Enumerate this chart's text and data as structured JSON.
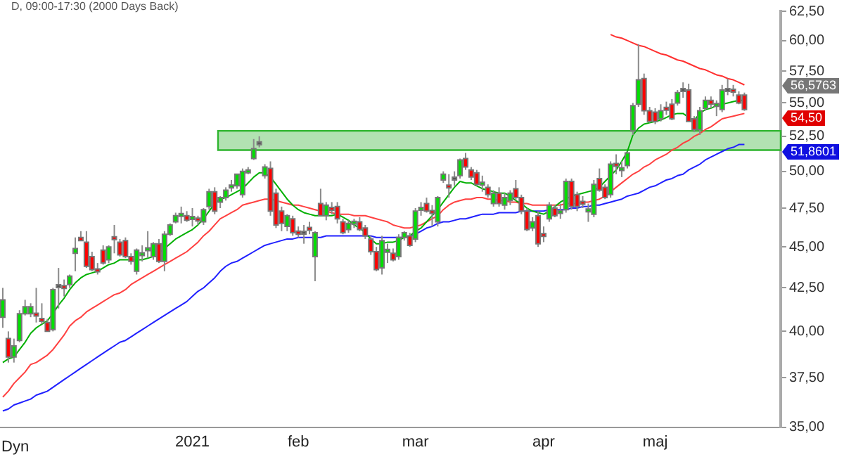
{
  "chart_data": {
    "type": "candlestick",
    "title": "D, 09:00-17:30 (2000 Days Back)",
    "categories": [
      null,
      null,
      null,
      null,
      null,
      null,
      null,
      null,
      null,
      null,
      null,
      null,
      null,
      null,
      null,
      null,
      null,
      null,
      null,
      null,
      null,
      null,
      null,
      null,
      null,
      null,
      null,
      null,
      null,
      null,
      null,
      null,
      null,
      null,
      "2021",
      null,
      null,
      null,
      null,
      null,
      null,
      null,
      null,
      null,
      null,
      null,
      null,
      null,
      null,
      null,
      null,
      null,
      null,
      "feb",
      null,
      null,
      null,
      null,
      null,
      null,
      null,
      null,
      null,
      null,
      null,
      null,
      null,
      null,
      null,
      null,
      null,
      null,
      null,
      null,
      "mar",
      null,
      null,
      null,
      null,
      null,
      null,
      null,
      null,
      null,
      null,
      null,
      null,
      null,
      null,
      null,
      null,
      null,
      null,
      null,
      null,
      null,
      null,
      "apr",
      null,
      null,
      null,
      null,
      null,
      null,
      null,
      null,
      null,
      null,
      null,
      null,
      null,
      null,
      null,
      null,
      null,
      null,
      null,
      "maj",
      null,
      null,
      null,
      null,
      null,
      null,
      null,
      null,
      null,
      null,
      null,
      null,
      null,
      null,
      null,
      null
    ],
    "ohlc": [
      [
        40.8,
        42.5,
        40.2,
        41.8
      ],
      [
        39.6,
        40.0,
        38.3,
        38.6
      ],
      [
        38.6,
        39.6,
        38.3,
        39.2
      ],
      [
        39.5,
        41.2,
        39.4,
        41.0
      ],
      [
        41.0,
        41.8,
        40.9,
        41.4
      ],
      [
        41.0,
        41.6,
        40.8,
        41.4
      ],
      [
        41.0,
        42.5,
        40.5,
        40.9
      ],
      [
        40.7,
        41.6,
        40.4,
        40.6
      ],
      [
        40.5,
        40.7,
        40.0,
        40.0
      ],
      [
        40.1,
        42.5,
        40.0,
        42.4
      ],
      [
        42.6,
        43.7,
        41.3,
        42.6
      ],
      [
        42.6,
        43.0,
        42.0,
        42.5
      ],
      [
        42.7,
        43.3,
        42.5,
        43.2
      ],
      [
        44.6,
        45.6,
        43.5,
        44.9
      ],
      [
        45.6,
        46.0,
        45.4,
        45.4
      ],
      [
        45.3,
        46.0,
        43.7,
        43.8
      ],
      [
        44.4,
        44.7,
        43.5,
        43.6
      ],
      [
        43.6,
        44.0,
        43.3,
        43.5
      ],
      [
        44.8,
        45.1,
        43.9,
        44.0
      ],
      [
        44.2,
        45.1,
        44.0,
        45.0
      ],
      [
        45.6,
        46.4,
        44.6,
        45.5
      ],
      [
        45.3,
        45.5,
        44.4,
        44.5
      ],
      [
        45.4,
        45.6,
        44.3,
        44.4
      ],
      [
        44.4,
        44.6,
        43.9,
        44.1
      ],
      [
        43.5,
        44.9,
        43.3,
        44.8
      ],
      [
        44.5,
        45.1,
        44.1,
        44.6
      ],
      [
        44.8,
        46.0,
        44.3,
        44.9
      ],
      [
        44.4,
        45.3,
        44.2,
        45.2
      ],
      [
        45.2,
        45.5,
        44.0,
        44.1
      ],
      [
        44.1,
        46.0,
        43.5,
        45.8
      ],
      [
        45.8,
        46.5,
        45.7,
        46.4
      ],
      [
        46.6,
        47.2,
        46.5,
        47.0
      ],
      [
        47.0,
        47.6,
        46.5,
        47.1
      ],
      [
        47.0,
        47.3,
        46.6,
        46.7
      ],
      [
        46.8,
        47.5,
        46.3,
        46.9
      ],
      [
        46.8,
        47.0,
        46.4,
        46.7
      ],
      [
        46.6,
        47.5,
        46.4,
        47.4
      ],
      [
        47.6,
        48.8,
        47.4,
        48.6
      ],
      [
        48.6,
        48.9,
        47.1,
        47.3
      ],
      [
        47.9,
        48.3,
        47.5,
        48.2
      ],
      [
        48.2,
        48.9,
        48.0,
        48.7
      ],
      [
        48.9,
        49.4,
        48.6,
        49.0
      ],
      [
        49.0,
        49.8,
        48.8,
        49.8
      ],
      [
        48.4,
        50.2,
        48.2,
        50.0
      ],
      [
        49.9,
        50.3,
        49.8,
        50.1
      ],
      [
        50.9,
        52.3,
        50.8,
        51.6
      ],
      [
        52.0,
        52.5,
        51.7,
        52.0
      ],
      [
        49.7,
        50.5,
        49.5,
        50.3
      ],
      [
        50.2,
        50.7,
        47.0,
        47.3
      ],
      [
        48.5,
        48.8,
        46.2,
        46.4
      ],
      [
        47.3,
        47.6,
        46.0,
        46.5
      ],
      [
        46.3,
        47.1,
        46.0,
        47.0
      ],
      [
        46.8,
        47.0,
        45.7,
        45.9
      ],
      [
        46.0,
        46.3,
        45.6,
        45.8
      ],
      [
        45.9,
        46.4,
        45.2,
        45.9
      ],
      [
        46.2,
        46.6,
        45.8,
        46.1
      ],
      [
        44.4,
        46.0,
        42.9,
        45.9
      ],
      [
        47.8,
        48.8,
        47.0,
        47.0
      ],
      [
        47.0,
        47.9,
        46.7,
        47.7
      ],
      [
        47.5,
        47.9,
        47.1,
        47.4
      ],
      [
        47.6,
        47.9,
        46.5,
        46.8
      ],
      [
        46.6,
        46.8,
        45.8,
        45.9
      ],
      [
        46.1,
        46.7,
        45.9,
        46.5
      ],
      [
        46.5,
        46.8,
        46.2,
        46.6
      ],
      [
        46.6,
        46.9,
        46.0,
        46.1
      ],
      [
        46.2,
        46.4,
        45.5,
        45.7
      ],
      [
        45.5,
        45.7,
        44.5,
        44.7
      ],
      [
        44.7,
        45.0,
        43.5,
        43.6
      ],
      [
        43.7,
        45.7,
        43.3,
        45.4
      ],
      [
        44.7,
        45.2,
        44.0,
        44.8
      ],
      [
        44.6,
        44.9,
        44.1,
        44.2
      ],
      [
        44.4,
        45.8,
        44.2,
        45.6
      ],
      [
        45.6,
        46.0,
        45.4,
        45.9
      ],
      [
        45.7,
        45.9,
        45.0,
        45.1
      ],
      [
        45.5,
        47.5,
        45.3,
        47.3
      ],
      [
        47.4,
        47.9,
        47.0,
        47.5
      ],
      [
        47.8,
        48.2,
        47.2,
        47.3
      ],
      [
        47.3,
        47.7,
        46.3,
        47.2
      ],
      [
        46.6,
        48.3,
        46.3,
        48.2
      ],
      [
        49.4,
        50.0,
        49.2,
        49.8
      ],
      [
        49.0,
        49.8,
        48.2,
        48.9
      ],
      [
        49.5,
        50.0,
        49.0,
        49.5
      ],
      [
        49.7,
        50.9,
        49.5,
        50.8
      ],
      [
        50.9,
        51.3,
        50.1,
        50.3
      ],
      [
        50.1,
        50.3,
        49.4,
        49.6
      ],
      [
        49.9,
        50.1,
        49.0,
        49.1
      ],
      [
        49.1,
        49.7,
        48.6,
        49.2
      ],
      [
        48.9,
        49.1,
        48.2,
        48.4
      ],
      [
        47.8,
        48.7,
        47.6,
        48.5
      ],
      [
        48.5,
        48.9,
        47.6,
        47.8
      ],
      [
        47.7,
        48.5,
        47.4,
        48.2
      ],
      [
        48.0,
        48.7,
        47.7,
        48.5
      ],
      [
        48.8,
        49.4,
        48.0,
        48.2
      ],
      [
        48.2,
        48.4,
        47.1,
        47.3
      ],
      [
        47.3,
        47.5,
        46.0,
        46.1
      ],
      [
        46.2,
        46.9,
        46.0,
        46.6
      ],
      [
        47.0,
        47.3,
        45.0,
        45.2
      ],
      [
        45.8,
        46.3,
        45.3,
        45.7
      ],
      [
        46.8,
        47.9,
        46.6,
        47.7
      ],
      [
        47.5,
        47.7,
        46.9,
        47.0
      ],
      [
        47.2,
        47.8,
        46.8,
        47.3
      ],
      [
        47.4,
        49.5,
        47.2,
        49.3
      ],
      [
        49.3,
        49.5,
        47.4,
        47.6
      ],
      [
        48.4,
        48.6,
        47.3,
        47.6
      ],
      [
        47.9,
        48.3,
        47.5,
        47.8
      ],
      [
        47.3,
        47.8,
        46.6,
        47.4
      ],
      [
        47.1,
        49.4,
        46.9,
        49.1
      ],
      [
        49.5,
        50.2,
        48.6,
        48.7
      ],
      [
        48.9,
        49.1,
        48.1,
        48.2
      ],
      [
        48.4,
        50.7,
        48.2,
        50.5
      ],
      [
        50.5,
        51.2,
        49.8,
        50.4
      ],
      [
        50.1,
        50.7,
        49.6,
        50.2
      ],
      [
        50.4,
        51.4,
        50.2,
        51.3
      ],
      [
        52.9,
        55.0,
        52.6,
        54.8
      ],
      [
        54.9,
        59.7,
        54.7,
        56.8
      ],
      [
        56.9,
        57.3,
        54.1,
        54.4
      ],
      [
        54.4,
        54.7,
        53.5,
        53.6
      ],
      [
        54.3,
        54.6,
        53.4,
        53.6
      ],
      [
        53.8,
        54.9,
        53.6,
        54.4
      ],
      [
        54.6,
        55.1,
        54.1,
        54.5
      ],
      [
        54.9,
        55.3,
        53.7,
        53.8
      ],
      [
        55.0,
        56.0,
        54.8,
        55.8
      ],
      [
        56.0,
        56.6,
        55.4,
        56.0
      ],
      [
        56.0,
        56.5,
        53.6,
        53.6
      ],
      [
        53.8,
        54.0,
        52.8,
        53.0
      ],
      [
        53.0,
        54.7,
        52.6,
        54.4
      ],
      [
        54.6,
        55.5,
        54.4,
        55.2
      ],
      [
        55.2,
        55.5,
        54.6,
        54.9
      ],
      [
        54.8,
        55.2,
        54.0,
        54.9
      ],
      [
        54.5,
        56.4,
        54.3,
        56.0
      ],
      [
        56.0,
        56.9,
        55.6,
        56.0
      ],
      [
        56.0,
        56.4,
        55.5,
        55.9
      ],
      [
        55.6,
        55.9,
        54.9,
        55.0
      ],
      [
        55.6,
        55.8,
        54.4,
        54.5
      ]
    ],
    "series": [
      {
        "type": "line",
        "color": "#00b000",
        "values": [
          38.3,
          38.5,
          38.6,
          39.0,
          39.4,
          39.9,
          40.2,
          40.4,
          40.6,
          41.0,
          41.5,
          41.9,
          42.4,
          42.8,
          43.1,
          43.3,
          43.4,
          43.5,
          43.7,
          43.9,
          44.0,
          44.2,
          44.2,
          44.2,
          44.2,
          44.2,
          44.3,
          44.4,
          44.6,
          44.9,
          45.2,
          45.5,
          45.7,
          45.9,
          46.1,
          46.4,
          46.8,
          47.3,
          47.8,
          48.1,
          48.2,
          48.4,
          48.6,
          48.8,
          49.2,
          49.6,
          49.9,
          49.9,
          49.6,
          49.1,
          48.6,
          48.1,
          47.7,
          47.4,
          47.2,
          47.1,
          47.0,
          47.0,
          47.0,
          47.0,
          47.1,
          46.9,
          46.7,
          46.4,
          46.2,
          45.9,
          45.5,
          45.2,
          45.2,
          45.3,
          45.3,
          45.4,
          45.6,
          45.7,
          46.0,
          46.2,
          46.6,
          47.0,
          47.4,
          47.9,
          48.4,
          48.9,
          49.3,
          49.2,
          49.2,
          49.0,
          48.8,
          48.7,
          48.6,
          48.5,
          48.5,
          48.3,
          48.0,
          47.8,
          47.5,
          47.3,
          47.2,
          47.1,
          47.3,
          47.6,
          47.9,
          48.1,
          48.3,
          48.4,
          48.5,
          48.6,
          48.7,
          48.9,
          49.3,
          49.7,
          50.1,
          50.7,
          51.4,
          52.6,
          53.1,
          53.4,
          53.5,
          53.6,
          53.7,
          53.9,
          54.1,
          54.2,
          54.2,
          53.9,
          53.7,
          54.2,
          54.5,
          54.6,
          54.8,
          54.9,
          55.0,
          55.1,
          55.2,
          55.2
        ]
      },
      {
        "type": "line",
        "color": "#ff4040",
        "values": [
          36.5,
          36.8,
          37.2,
          37.5,
          37.8,
          38.2,
          38.3,
          38.5,
          38.7,
          39.0,
          39.4,
          39.8,
          40.3,
          40.6,
          40.8,
          41.1,
          41.3,
          41.5,
          41.7,
          41.9,
          42.1,
          42.2,
          42.4,
          42.7,
          42.9,
          43.1,
          43.3,
          43.5,
          43.7,
          43.9,
          44.1,
          44.3,
          44.5,
          44.7,
          45.0,
          45.3,
          45.7,
          46.0,
          46.4,
          46.8,
          47.0,
          47.2,
          47.4,
          47.7,
          47.8,
          47.9,
          48.0,
          48.1,
          48.1,
          48.0,
          47.9,
          47.8,
          47.7,
          47.7,
          47.6,
          47.5,
          47.4,
          47.3,
          47.3,
          47.2,
          47.1,
          47.1,
          47.1,
          47.0,
          47.0,
          47.0,
          46.9,
          46.8,
          46.7,
          46.6,
          46.4,
          46.3,
          46.2,
          46.2,
          46.3,
          46.4,
          46.6,
          46.8,
          47.0,
          47.4,
          47.7,
          47.9,
          48.0,
          48.1,
          48.1,
          48.2,
          48.2,
          48.1,
          48.1,
          48.0,
          48.0,
          47.9,
          47.9,
          47.8,
          47.8,
          47.7,
          47.7,
          47.7,
          47.7,
          47.7,
          47.7,
          47.8,
          47.8,
          47.8,
          47.9,
          47.9,
          48.0,
          48.1,
          48.3,
          48.6,
          48.9,
          49.2,
          49.5,
          49.8,
          50.0,
          50.3,
          50.5,
          50.8,
          51.0,
          51.2,
          51.5,
          51.7,
          52.0,
          52.2,
          52.5,
          52.7,
          53.0,
          53.2,
          53.5,
          53.8,
          53.9,
          54.0,
          54.1,
          54.2
        ]
      },
      {
        "type": "line",
        "color": "#2020ff",
        "values": [
          35.8,
          35.9,
          36.1,
          36.2,
          36.3,
          36.4,
          36.6,
          36.7,
          36.8,
          37.0,
          37.2,
          37.4,
          37.6,
          37.8,
          38.0,
          38.2,
          38.4,
          38.6,
          38.8,
          39.0,
          39.2,
          39.4,
          39.5,
          39.7,
          39.9,
          40.1,
          40.3,
          40.5,
          40.7,
          40.9,
          41.1,
          41.3,
          41.5,
          41.7,
          42.0,
          42.3,
          42.5,
          42.8,
          43.1,
          43.5,
          43.8,
          44.0,
          44.1,
          44.3,
          44.5,
          44.7,
          44.9,
          45.1,
          45.2,
          45.3,
          45.4,
          45.5,
          45.5,
          45.6,
          45.6,
          45.6,
          45.6,
          45.6,
          45.7,
          45.7,
          45.7,
          45.7,
          45.7,
          45.7,
          45.7,
          45.7,
          45.7,
          45.6,
          45.6,
          45.6,
          45.6,
          45.6,
          45.6,
          45.7,
          45.8,
          46.0,
          46.2,
          46.3,
          46.5,
          46.6,
          46.6,
          46.7,
          46.8,
          46.8,
          46.9,
          47.0,
          47.1,
          47.1,
          47.1,
          47.2,
          47.2,
          47.2,
          47.2,
          47.3,
          47.3,
          47.3,
          47.3,
          47.3,
          47.4,
          47.4,
          47.4,
          47.4,
          47.5,
          47.5,
          47.6,
          47.6,
          47.7,
          47.7,
          47.8,
          47.9,
          48.0,
          48.1,
          48.3,
          48.4,
          48.5,
          48.7,
          48.9,
          49.0,
          49.2,
          49.4,
          49.5,
          49.7,
          49.8,
          50.1,
          50.3,
          50.5,
          50.8,
          51.0,
          51.2,
          51.4,
          51.6,
          51.7,
          51.9,
          51.9
        ]
      },
      {
        "type": "line",
        "color": "#ff3030",
        "values": [
          null,
          null,
          null,
          null,
          null,
          null,
          null,
          null,
          null,
          null,
          null,
          null,
          null,
          null,
          null,
          null,
          null,
          null,
          null,
          null,
          null,
          null,
          null,
          null,
          null,
          null,
          null,
          null,
          null,
          null,
          null,
          null,
          null,
          null,
          null,
          null,
          null,
          null,
          null,
          null,
          null,
          null,
          null,
          null,
          null,
          null,
          null,
          null,
          null,
          null,
          null,
          null,
          null,
          null,
          null,
          null,
          null,
          null,
          null,
          null,
          null,
          null,
          null,
          null,
          null,
          null,
          null,
          null,
          null,
          null,
          null,
          null,
          null,
          null,
          null,
          null,
          null,
          null,
          null,
          null,
          null,
          null,
          null,
          null,
          null,
          null,
          null,
          null,
          null,
          null,
          null,
          null,
          null,
          null,
          null,
          null,
          null,
          null,
          null,
          null,
          null,
          null,
          null,
          null,
          null,
          null,
          null,
          null,
          null,
          60.5,
          60.3,
          60.2,
          60.0,
          59.8,
          59.6,
          59.5,
          59.3,
          59.1,
          58.9,
          58.8,
          58.6,
          58.4,
          58.3,
          58.1,
          57.9,
          57.7,
          57.6,
          57.4,
          57.2,
          57.1,
          56.9,
          56.8,
          56.6,
          56.4
        ]
      }
    ],
    "ylim": [
      35,
      62.5
    ],
    "log": true,
    "yticks": [
      {
        "value": 35,
        "label": "35,00"
      },
      {
        "value": 37.5,
        "label": "37,50"
      },
      {
        "value": 40,
        "label": "40,00"
      },
      {
        "value": 42.5,
        "label": "42,50"
      },
      {
        "value": 45,
        "label": "45,00"
      },
      {
        "value": 47.5,
        "label": "47,50"
      },
      {
        "value": 50,
        "label": "50,00"
      },
      {
        "value": 52.5,
        "label": "52,50"
      },
      {
        "value": 55,
        "label": "55,00"
      },
      {
        "value": 57.5,
        "label": "57,50"
      },
      {
        "value": 60,
        "label": "60,00"
      },
      {
        "value": 62.5,
        "label": "62,50"
      }
    ],
    "bands": [
      {
        "axis": "y",
        "from": 51.5,
        "to": 52.9,
        "color": "#b2e2b2"
      }
    ],
    "annotations": [
      "56,5763",
      "54,50",
      "51,8601",
      "Dyn"
    ]
  }
}
